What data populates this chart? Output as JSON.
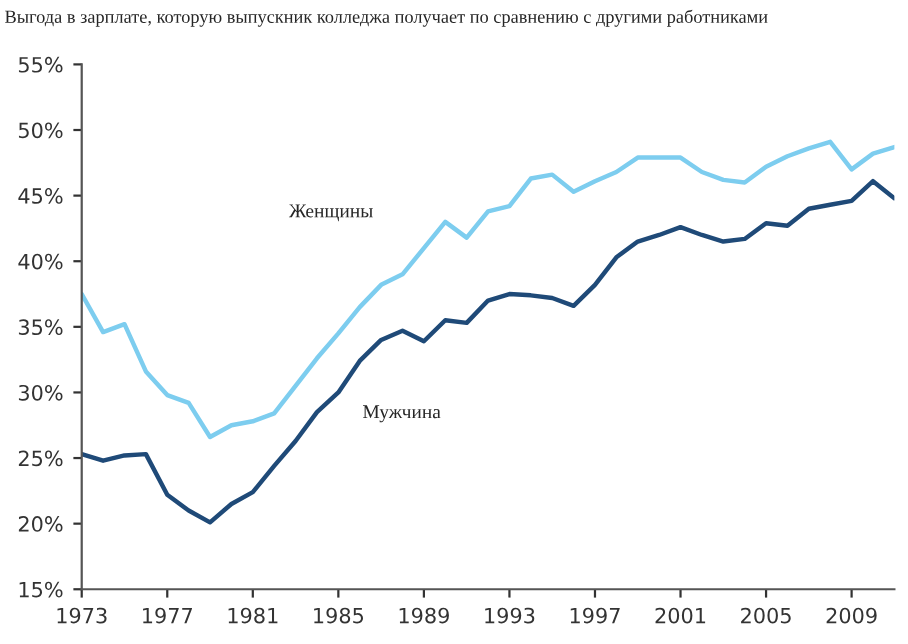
{
  "chart_data": {
    "type": "line",
    "title": "Выгода в зарплате, которую выпускник колледжа получает по сравнению с другими работниками",
    "x": [
      1973,
      1974,
      1975,
      1976,
      1977,
      1978,
      1979,
      1980,
      1981,
      1982,
      1983,
      1984,
      1985,
      1986,
      1987,
      1988,
      1989,
      1990,
      1991,
      1992,
      1993,
      1994,
      1995,
      1996,
      1997,
      1998,
      1999,
      2000,
      2001,
      2002,
      2003,
      2004,
      2005,
      2006,
      2007,
      2008,
      2009,
      2010,
      2011
    ],
    "series": [
      {
        "name": "Женщины",
        "color": "#7dcdef",
        "values": [
          37.5,
          34.6,
          35.2,
          31.6,
          29.8,
          29.2,
          26.6,
          27.5,
          27.8,
          28.4,
          30.5,
          32.6,
          34.5,
          36.5,
          38.2,
          39.0,
          41.0,
          43.0,
          41.8,
          43.8,
          44.2,
          46.3,
          46.6,
          45.3,
          46.1,
          46.8,
          47.9,
          47.9,
          47.9,
          46.8,
          46.2,
          46.0,
          47.2,
          48.0,
          48.6,
          49.1,
          47.0,
          48.2,
          48.7
        ]
      },
      {
        "name": "Мужчина",
        "color": "#1f4a78",
        "values": [
          25.3,
          24.8,
          25.2,
          25.3,
          22.2,
          21.0,
          20.1,
          21.5,
          22.4,
          24.4,
          26.3,
          28.5,
          30.0,
          32.4,
          34.0,
          34.7,
          33.9,
          35.5,
          35.3,
          37.0,
          37.5,
          37.4,
          37.2,
          36.6,
          38.2,
          40.3,
          41.5,
          42.0,
          42.6,
          42.0,
          41.5,
          41.7,
          42.9,
          42.7,
          44.0,
          44.3,
          44.6,
          46.1,
          44.8
        ]
      }
    ],
    "xlim": [
      1973,
      2011
    ],
    "xticks": [
      1973,
      1977,
      1981,
      1985,
      1989,
      1993,
      1997,
      2001,
      2005,
      2009
    ],
    "ylim": [
      15,
      55
    ],
    "yticks": [
      {
        "value": 15,
        "label": "15%"
      },
      {
        "value": 20,
        "label": "20%"
      },
      {
        "value": 25,
        "label": "25%"
      },
      {
        "value": 30,
        "label": "30%"
      },
      {
        "value": 35,
        "label": "35%"
      },
      {
        "value": 40,
        "label": "40%"
      },
      {
        "value": 45,
        "label": "45%"
      },
      {
        "value": 50,
        "label": "50%"
      },
      {
        "value": 55,
        "label": "55%"
      }
    ],
    "grid": false,
    "legend": false
  }
}
